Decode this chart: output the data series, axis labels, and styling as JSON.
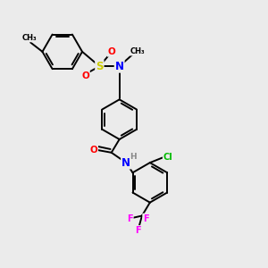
{
  "bg_color": "#ebebeb",
  "bond_color": "#000000",
  "atom_colors": {
    "N": "#0000ff",
    "O": "#ff0000",
    "S": "#cccc00",
    "Cl": "#00bb00",
    "F": "#ff00ff",
    "H": "#888888",
    "C": "#000000"
  },
  "figsize": [
    3.0,
    3.0
  ],
  "dpi": 100
}
